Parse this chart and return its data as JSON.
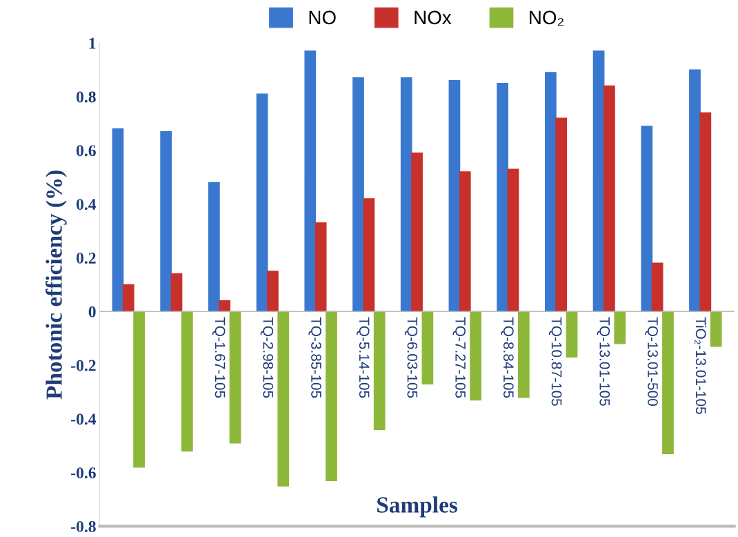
{
  "chart_data": {
    "type": "bar",
    "xlabel": "Samples",
    "ylabel": "Photonic efficiency (%)",
    "categories": [
      null,
      null,
      "TQ-1.67-105",
      "TQ-2.98-105",
      "TQ-3.85-105",
      "TQ-5.14-105",
      "TQ-6.03-105",
      "TQ-7.27-105",
      "TQ-8.84-105",
      "TQ-10.87-105",
      "TQ-13.01-105",
      "TQ-13.01-500",
      "TiO₂-13.01-105"
    ],
    "series": [
      {
        "name": "NO",
        "color": "#3a78d0",
        "values": [
          0.68,
          0.67,
          0.48,
          0.81,
          0.97,
          0.87,
          0.87,
          0.86,
          0.85,
          0.89,
          0.97,
          0.69,
          0.9
        ]
      },
      {
        "name": "NOx",
        "color": "#c8302c",
        "values": [
          0.1,
          0.14,
          0.04,
          0.15,
          0.33,
          0.42,
          0.59,
          0.52,
          0.53,
          0.72,
          0.84,
          0.18,
          0.74
        ]
      },
      {
        "name": "NO₂",
        "color": "#8db83a",
        "values": [
          -0.58,
          -0.52,
          -0.49,
          -0.65,
          -0.63,
          -0.44,
          -0.27,
          -0.33,
          -0.32,
          -0.17,
          -0.12,
          -0.53,
          -0.13
        ]
      }
    ],
    "ylim": [
      -0.8,
      1.0
    ],
    "yticks": [
      -0.8,
      -0.6,
      -0.4,
      -0.2,
      0,
      0.2,
      0.4,
      0.6,
      0.8,
      1
    ],
    "grid": false,
    "legend": "top"
  }
}
